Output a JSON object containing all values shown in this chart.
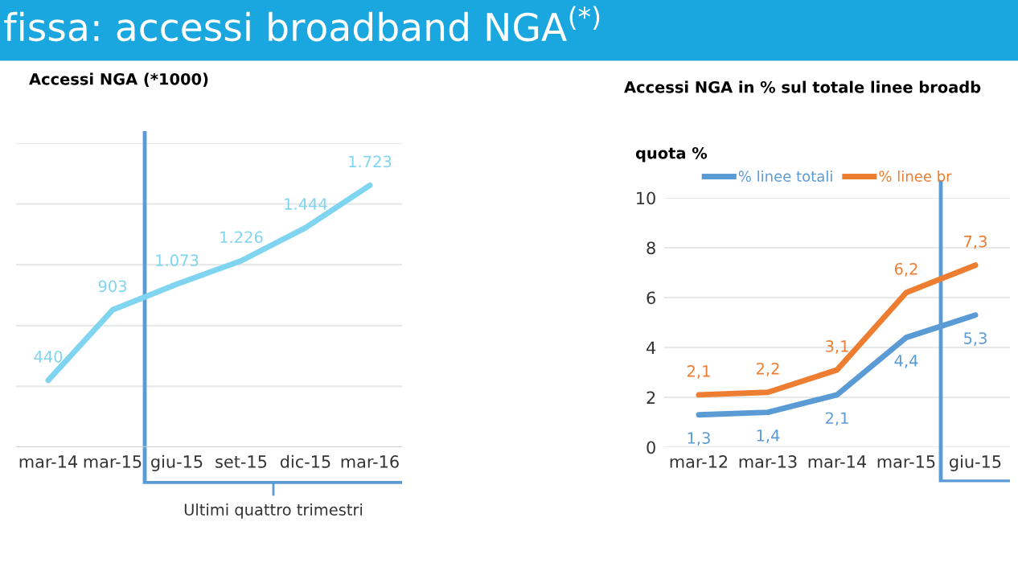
{
  "chart_data": [
    {
      "type": "line",
      "title": "Accessi NGA (*1000)",
      "categories": [
        "mar-14",
        "mar-15",
        "giu-15",
        "set-15",
        "dic-15",
        "mar-16"
      ],
      "series": [
        {
          "color": "#7fd4f0",
          "values": [
            440,
            903,
            1073,
            1226,
            1444,
            1723
          ],
          "value_labels": [
            "440",
            "903",
            "1.073",
            "1.226",
            "1.444",
            "1.723"
          ]
        }
      ],
      "ylim": [
        0,
        2000
      ],
      "yticks": [
        {
          "value": 0,
          "label": null
        },
        {
          "value": 400,
          "label": null
        },
        {
          "value": 800,
          "label": null
        },
        {
          "value": 1200,
          "label": null
        },
        {
          "value": 1600,
          "label": null
        },
        {
          "value": 2000,
          "label": null
        }
      ],
      "grid": "y",
      "tick_labels": "x",
      "annotations": [
        "fissa: accessi broadband NGA$^{(*)}$",
        "Ultimi quattro trimestri"
      ]
    },
    {
      "type": "line",
      "title": "Accessi NGA in % sul totale linee broadb",
      "ylabel": "quota %",
      "categories": [
        "mar-12",
        "mar-13",
        "mar-14",
        "mar-15",
        "giu-15"
      ],
      "series": [
        {
          "name": "% linee totali",
          "color": "#5b9bd5",
          "values": [
            1.3,
            1.4,
            2.1,
            4.4,
            5.3
          ],
          "value_labels": [
            "1,3",
            "1,4",
            "2,1",
            "4,4",
            "5,3"
          ]
        },
        {
          "name": "% linee br",
          "color": "#ed7d31",
          "values": [
            2.1,
            2.2,
            3.1,
            6.2,
            7.3
          ],
          "value_labels": [
            "2,1",
            "2,2",
            "3,1",
            "6,2",
            "7,3"
          ]
        }
      ],
      "ylim": [
        0,
        10
      ],
      "yticks": [
        0,
        2,
        4,
        6,
        8,
        10
      ],
      "grid": "y",
      "legend": "top"
    }
  ]
}
